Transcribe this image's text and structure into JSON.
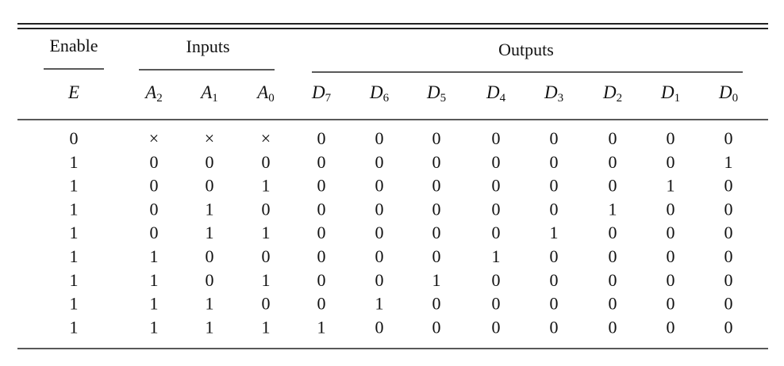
{
  "table": {
    "groups": [
      {
        "label": "Enable"
      },
      {
        "label": "Inputs"
      },
      {
        "label": "Outputs"
      }
    ],
    "columns": [
      {
        "name": "E"
      },
      {
        "name": "A",
        "sub": "2"
      },
      {
        "name": "A",
        "sub": "1"
      },
      {
        "name": "A",
        "sub": "0"
      },
      {
        "name": "D",
        "sub": "7"
      },
      {
        "name": "D",
        "sub": "6"
      },
      {
        "name": "D",
        "sub": "5"
      },
      {
        "name": "D",
        "sub": "4"
      },
      {
        "name": "D",
        "sub": "3"
      },
      {
        "name": "D",
        "sub": "2"
      },
      {
        "name": "D",
        "sub": "1"
      },
      {
        "name": "D",
        "sub": "0"
      }
    ],
    "rows": [
      [
        "0",
        "×",
        "×",
        "×",
        "0",
        "0",
        "0",
        "0",
        "0",
        "0",
        "0",
        "0"
      ],
      [
        "1",
        "0",
        "0",
        "0",
        "0",
        "0",
        "0",
        "0",
        "0",
        "0",
        "0",
        "1"
      ],
      [
        "1",
        "0",
        "0",
        "1",
        "0",
        "0",
        "0",
        "0",
        "0",
        "0",
        "1",
        "0"
      ],
      [
        "1",
        "0",
        "1",
        "0",
        "0",
        "0",
        "0",
        "0",
        "0",
        "1",
        "0",
        "0"
      ],
      [
        "1",
        "0",
        "1",
        "1",
        "0",
        "0",
        "0",
        "0",
        "1",
        "0",
        "0",
        "0"
      ],
      [
        "1",
        "1",
        "0",
        "0",
        "0",
        "0",
        "0",
        "1",
        "0",
        "0",
        "0",
        "0"
      ],
      [
        "1",
        "1",
        "0",
        "1",
        "0",
        "0",
        "1",
        "0",
        "0",
        "0",
        "0",
        "0"
      ],
      [
        "1",
        "1",
        "1",
        "0",
        "0",
        "1",
        "0",
        "0",
        "0",
        "0",
        "0",
        "0"
      ],
      [
        "1",
        "1",
        "1",
        "1",
        "1",
        "0",
        "0",
        "0",
        "0",
        "0",
        "0",
        "0"
      ]
    ]
  }
}
